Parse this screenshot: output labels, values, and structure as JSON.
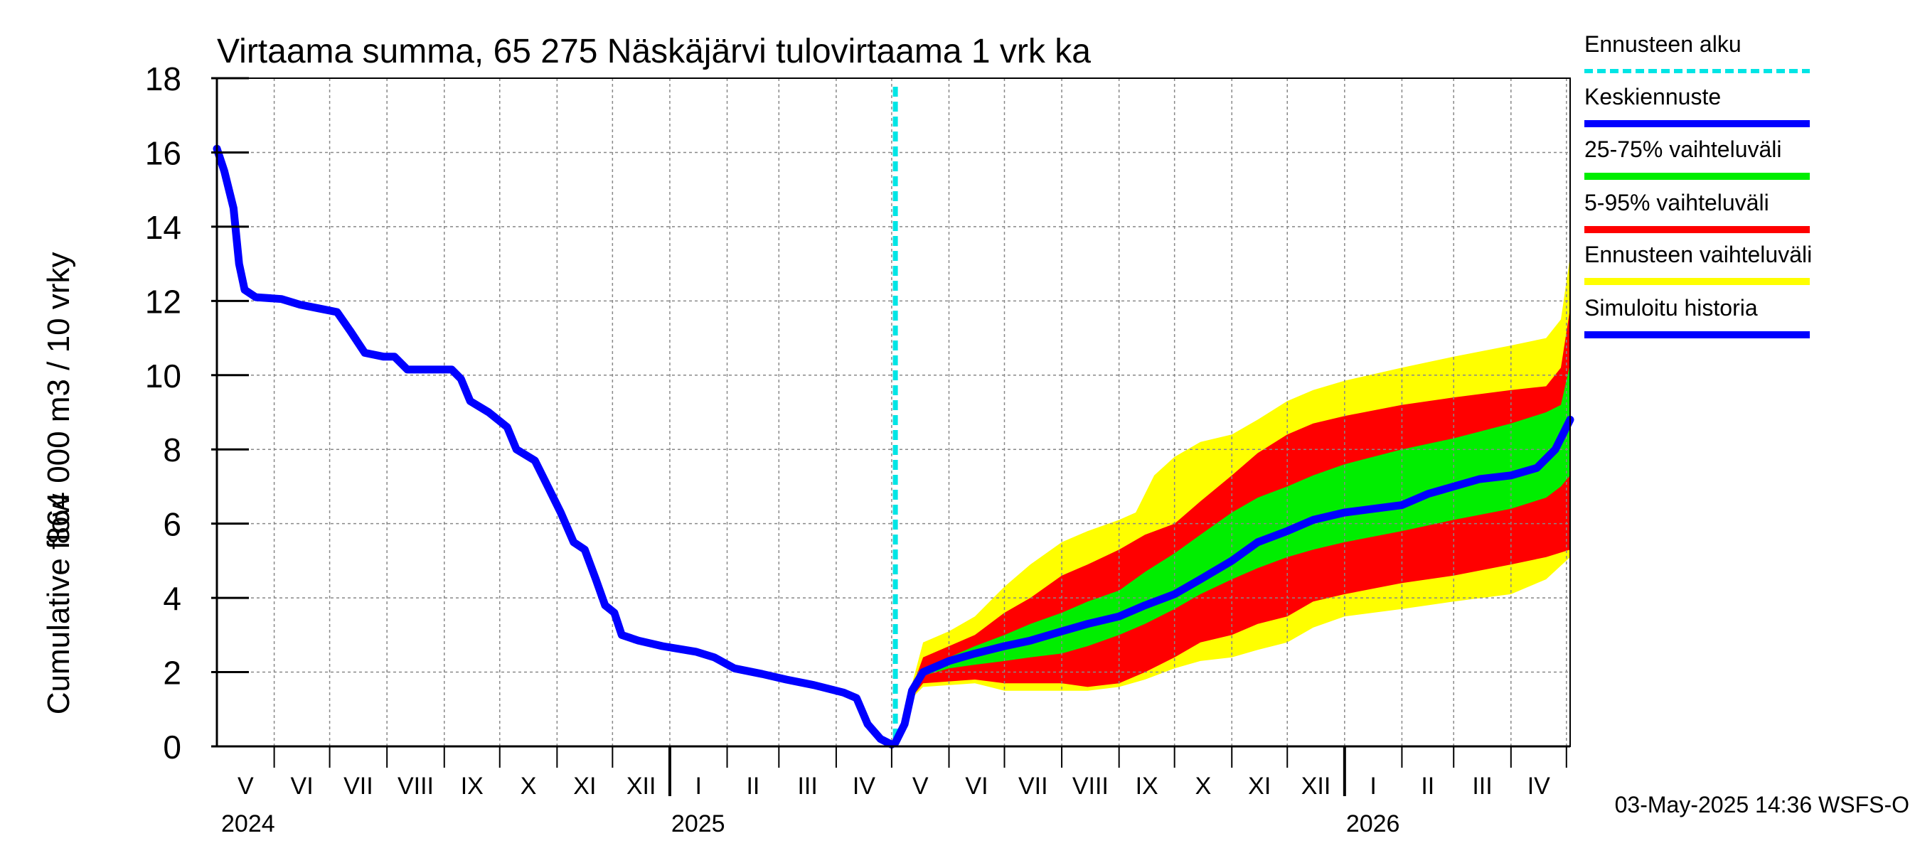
{
  "chart_data": {
    "type": "area",
    "title": "Virtaama summa, 65 275 Näskäjärvi tulovirtaama 1 vrk ka",
    "ylabel_line1": "864 000 m3 / 10 vrky",
    "ylabel_line2": "Cumulative flow",
    "ylim": [
      0,
      18
    ],
    "y_ticks": [
      "0",
      "2",
      "4",
      "6",
      "8",
      "10",
      "12",
      "14",
      "16",
      "18"
    ],
    "x_months": [
      "V",
      "VI",
      "VII",
      "VIII",
      "IX",
      "X",
      "XI",
      "XII",
      "I",
      "II",
      "III",
      "IV",
      "V",
      "VI",
      "VII",
      "VIII",
      "IX",
      "X",
      "XI",
      "XII",
      "I",
      "II",
      "III",
      "IV"
    ],
    "x_years": [
      "2024",
      "2025",
      "2026"
    ],
    "grid": true,
    "legend_position": "right",
    "timestamp": "03-May-2025 14:36 WSFS-O",
    "forecast_start": "2025-05-03",
    "legend": [
      {
        "label": "Ennusteen alku",
        "color": "#00e5e5",
        "style": "dashed"
      },
      {
        "label": "Keskiennuste",
        "color": "#0000ff",
        "style": "solid"
      },
      {
        "label": "25-75% vaihteluväli",
        "color": "#00ee00",
        "style": "solid"
      },
      {
        "label": "5-95% vaihteluväli",
        "color": "#ff0000",
        "style": "solid"
      },
      {
        "label": "Ennusteen vaihteluväli",
        "color": "#ffff00",
        "style": "solid"
      },
      {
        "label": "Simuloitu historia",
        "color": "#0000ff",
        "style": "solid"
      }
    ],
    "history": {
      "name": "Simuloitu historia",
      "points": [
        [
          "2024-05-01",
          16.1
        ],
        [
          "2024-05-05",
          15.5
        ],
        [
          "2024-05-10",
          14.5
        ],
        [
          "2024-05-13",
          13.0
        ],
        [
          "2024-05-16",
          12.3
        ],
        [
          "2024-05-22",
          12.1
        ],
        [
          "2024-06-05",
          12.05
        ],
        [
          "2024-06-15",
          11.9
        ],
        [
          "2024-06-25",
          11.8
        ],
        [
          "2024-07-05",
          11.7
        ],
        [
          "2024-07-12",
          11.2
        ],
        [
          "2024-07-20",
          10.6
        ],
        [
          "2024-07-30",
          10.5
        ],
        [
          "2024-08-05",
          10.5
        ],
        [
          "2024-08-12",
          10.15
        ],
        [
          "2024-08-25",
          10.15
        ],
        [
          "2024-09-05",
          10.15
        ],
        [
          "2024-09-10",
          9.9
        ],
        [
          "2024-09-15",
          9.3
        ],
        [
          "2024-09-25",
          9.0
        ],
        [
          "2024-10-05",
          8.6
        ],
        [
          "2024-10-10",
          8.0
        ],
        [
          "2024-10-20",
          7.7
        ],
        [
          "2024-10-27",
          7.0
        ],
        [
          "2024-11-03",
          6.3
        ],
        [
          "2024-11-10",
          5.5
        ],
        [
          "2024-11-16",
          5.3
        ],
        [
          "2024-11-22",
          4.5
        ],
        [
          "2024-11-27",
          3.8
        ],
        [
          "2024-12-02",
          3.6
        ],
        [
          "2024-12-06",
          3.0
        ],
        [
          "2024-12-15",
          2.85
        ],
        [
          "2024-12-28",
          2.7
        ],
        [
          "2025-01-15",
          2.55
        ],
        [
          "2025-01-25",
          2.4
        ],
        [
          "2025-02-05",
          2.1
        ],
        [
          "2025-02-20",
          1.95
        ],
        [
          "2025-03-05",
          1.8
        ],
        [
          "2025-03-20",
          1.65
        ],
        [
          "2025-04-05",
          1.45
        ],
        [
          "2025-04-12",
          1.3
        ],
        [
          "2025-04-18",
          0.6
        ],
        [
          "2025-04-25",
          0.2
        ],
        [
          "2025-05-01",
          0.05
        ]
      ]
    },
    "series": [
      {
        "name": "Ennusteen vaihteluväli",
        "color": "#ffff00",
        "upper": [
          [
            "2025-05-03",
            0.1
          ],
          [
            "2025-05-10",
            1.3
          ],
          [
            "2025-05-18",
            2.8
          ],
          [
            "2025-06-01",
            3.1
          ],
          [
            "2025-06-15",
            3.5
          ],
          [
            "2025-07-01",
            4.3
          ],
          [
            "2025-07-15",
            4.9
          ],
          [
            "2025-08-01",
            5.5
          ],
          [
            "2025-08-15",
            5.8
          ],
          [
            "2025-09-01",
            6.1
          ],
          [
            "2025-09-10",
            6.3
          ],
          [
            "2025-09-20",
            7.3
          ],
          [
            "2025-10-01",
            7.8
          ],
          [
            "2025-10-15",
            8.2
          ],
          [
            "2025-11-01",
            8.4
          ],
          [
            "2025-11-15",
            8.8
          ],
          [
            "2025-12-01",
            9.3
          ],
          [
            "2025-12-15",
            9.6
          ],
          [
            "2026-01-01",
            9.85
          ],
          [
            "2026-02-01",
            10.2
          ],
          [
            "2026-03-01",
            10.5
          ],
          [
            "2026-04-01",
            10.8
          ],
          [
            "2026-04-20",
            11.0
          ],
          [
            "2026-04-28",
            11.5
          ],
          [
            "2026-05-03",
            13.2
          ]
        ],
        "lower": [
          [
            "2025-05-03",
            0.1
          ],
          [
            "2025-05-10",
            1.2
          ],
          [
            "2025-05-18",
            1.6
          ],
          [
            "2025-06-15",
            1.7
          ],
          [
            "2025-07-01",
            1.5
          ],
          [
            "2025-08-01",
            1.5
          ],
          [
            "2025-08-15",
            1.5
          ],
          [
            "2025-09-01",
            1.6
          ],
          [
            "2025-09-15",
            1.8
          ],
          [
            "2025-10-01",
            2.1
          ],
          [
            "2025-10-15",
            2.3
          ],
          [
            "2025-11-01",
            2.4
          ],
          [
            "2025-11-15",
            2.6
          ],
          [
            "2025-12-01",
            2.8
          ],
          [
            "2025-12-15",
            3.2
          ],
          [
            "2026-01-01",
            3.5
          ],
          [
            "2026-02-01",
            3.7
          ],
          [
            "2026-03-01",
            3.9
          ],
          [
            "2026-04-01",
            4.1
          ],
          [
            "2026-04-20",
            4.5
          ],
          [
            "2026-05-03",
            5.1
          ]
        ]
      },
      {
        "name": "5-95% vaihteluväli",
        "color": "#ff0000",
        "upper": [
          [
            "2025-05-03",
            0.1
          ],
          [
            "2025-05-10",
            1.3
          ],
          [
            "2025-05-18",
            2.4
          ],
          [
            "2025-06-01",
            2.7
          ],
          [
            "2025-06-15",
            3.0
          ],
          [
            "2025-07-01",
            3.6
          ],
          [
            "2025-07-15",
            4.0
          ],
          [
            "2025-08-01",
            4.6
          ],
          [
            "2025-08-15",
            4.9
          ],
          [
            "2025-09-01",
            5.3
          ],
          [
            "2025-09-15",
            5.7
          ],
          [
            "2025-10-01",
            6.0
          ],
          [
            "2025-10-15",
            6.6
          ],
          [
            "2025-11-01",
            7.3
          ],
          [
            "2025-11-15",
            7.9
          ],
          [
            "2025-12-01",
            8.4
          ],
          [
            "2025-12-15",
            8.7
          ],
          [
            "2026-01-01",
            8.9
          ],
          [
            "2026-02-01",
            9.2
          ],
          [
            "2026-03-01",
            9.4
          ],
          [
            "2026-04-01",
            9.6
          ],
          [
            "2026-04-20",
            9.7
          ],
          [
            "2026-04-28",
            10.2
          ],
          [
            "2026-05-03",
            11.8
          ]
        ],
        "lower": [
          [
            "2025-05-03",
            0.1
          ],
          [
            "2025-05-10",
            1.2
          ],
          [
            "2025-05-18",
            1.7
          ],
          [
            "2025-06-15",
            1.8
          ],
          [
            "2025-07-01",
            1.7
          ],
          [
            "2025-08-01",
            1.7
          ],
          [
            "2025-08-15",
            1.6
          ],
          [
            "2025-09-01",
            1.7
          ],
          [
            "2025-09-15",
            2.0
          ],
          [
            "2025-10-01",
            2.4
          ],
          [
            "2025-10-15",
            2.8
          ],
          [
            "2025-11-01",
            3.0
          ],
          [
            "2025-11-15",
            3.3
          ],
          [
            "2025-12-01",
            3.5
          ],
          [
            "2025-12-15",
            3.9
          ],
          [
            "2026-01-01",
            4.1
          ],
          [
            "2026-02-01",
            4.4
          ],
          [
            "2026-03-01",
            4.6
          ],
          [
            "2026-04-01",
            4.9
          ],
          [
            "2026-04-20",
            5.1
          ],
          [
            "2026-05-03",
            5.3
          ]
        ]
      },
      {
        "name": "25-75% vaihteluväli",
        "color": "#00ee00",
        "upper": [
          [
            "2025-05-03",
            0.1
          ],
          [
            "2025-05-10",
            1.3
          ],
          [
            "2025-05-18",
            2.1
          ],
          [
            "2025-06-01",
            2.4
          ],
          [
            "2025-06-15",
            2.7
          ],
          [
            "2025-07-01",
            3.0
          ],
          [
            "2025-07-15",
            3.3
          ],
          [
            "2025-08-01",
            3.6
          ],
          [
            "2025-08-15",
            3.9
          ],
          [
            "2025-09-01",
            4.2
          ],
          [
            "2025-09-15",
            4.7
          ],
          [
            "2025-10-01",
            5.2
          ],
          [
            "2025-10-15",
            5.7
          ],
          [
            "2025-11-01",
            6.3
          ],
          [
            "2025-11-15",
            6.7
          ],
          [
            "2025-12-01",
            7.0
          ],
          [
            "2025-12-15",
            7.3
          ],
          [
            "2026-01-01",
            7.6
          ],
          [
            "2026-02-01",
            8.0
          ],
          [
            "2026-03-01",
            8.3
          ],
          [
            "2026-04-01",
            8.7
          ],
          [
            "2026-04-20",
            9.0
          ],
          [
            "2026-04-28",
            9.2
          ],
          [
            "2026-05-03",
            10.3
          ]
        ],
        "lower": [
          [
            "2025-05-03",
            0.1
          ],
          [
            "2025-05-10",
            1.2
          ],
          [
            "2025-05-18",
            1.9
          ],
          [
            "2025-06-01",
            2.1
          ],
          [
            "2025-06-15",
            2.2
          ],
          [
            "2025-07-01",
            2.3
          ],
          [
            "2025-07-15",
            2.4
          ],
          [
            "2025-08-01",
            2.5
          ],
          [
            "2025-08-15",
            2.7
          ],
          [
            "2025-09-01",
            3.0
          ],
          [
            "2025-09-15",
            3.3
          ],
          [
            "2025-10-01",
            3.7
          ],
          [
            "2025-10-15",
            4.1
          ],
          [
            "2025-11-01",
            4.5
          ],
          [
            "2025-11-15",
            4.8
          ],
          [
            "2025-12-01",
            5.1
          ],
          [
            "2025-12-15",
            5.3
          ],
          [
            "2026-01-01",
            5.5
          ],
          [
            "2026-02-01",
            5.8
          ],
          [
            "2026-03-01",
            6.1
          ],
          [
            "2026-04-01",
            6.4
          ],
          [
            "2026-04-20",
            6.7
          ],
          [
            "2026-04-28",
            7.0
          ],
          [
            "2026-05-03",
            7.3
          ]
        ]
      },
      {
        "name": "Keskiennuste",
        "color": "#0000ff",
        "points": [
          [
            "2025-05-03",
            0.1
          ],
          [
            "2025-05-08",
            0.6
          ],
          [
            "2025-05-12",
            1.5
          ],
          [
            "2025-05-18",
            2.0
          ],
          [
            "2025-06-01",
            2.3
          ],
          [
            "2025-06-15",
            2.5
          ],
          [
            "2025-07-01",
            2.7
          ],
          [
            "2025-07-15",
            2.85
          ],
          [
            "2025-08-01",
            3.1
          ],
          [
            "2025-08-15",
            3.3
          ],
          [
            "2025-09-01",
            3.5
          ],
          [
            "2025-09-15",
            3.8
          ],
          [
            "2025-10-01",
            4.1
          ],
          [
            "2025-10-15",
            4.5
          ],
          [
            "2025-11-01",
            5.0
          ],
          [
            "2025-11-15",
            5.5
          ],
          [
            "2025-12-01",
            5.8
          ],
          [
            "2025-12-15",
            6.1
          ],
          [
            "2026-01-01",
            6.3
          ],
          [
            "2026-02-01",
            6.5
          ],
          [
            "2026-02-15",
            6.8
          ],
          [
            "2026-03-01",
            7.0
          ],
          [
            "2026-03-15",
            7.2
          ],
          [
            "2026-04-01",
            7.3
          ],
          [
            "2026-04-15",
            7.5
          ],
          [
            "2026-04-25",
            8.0
          ],
          [
            "2026-05-03",
            8.8
          ]
        ]
      }
    ]
  }
}
